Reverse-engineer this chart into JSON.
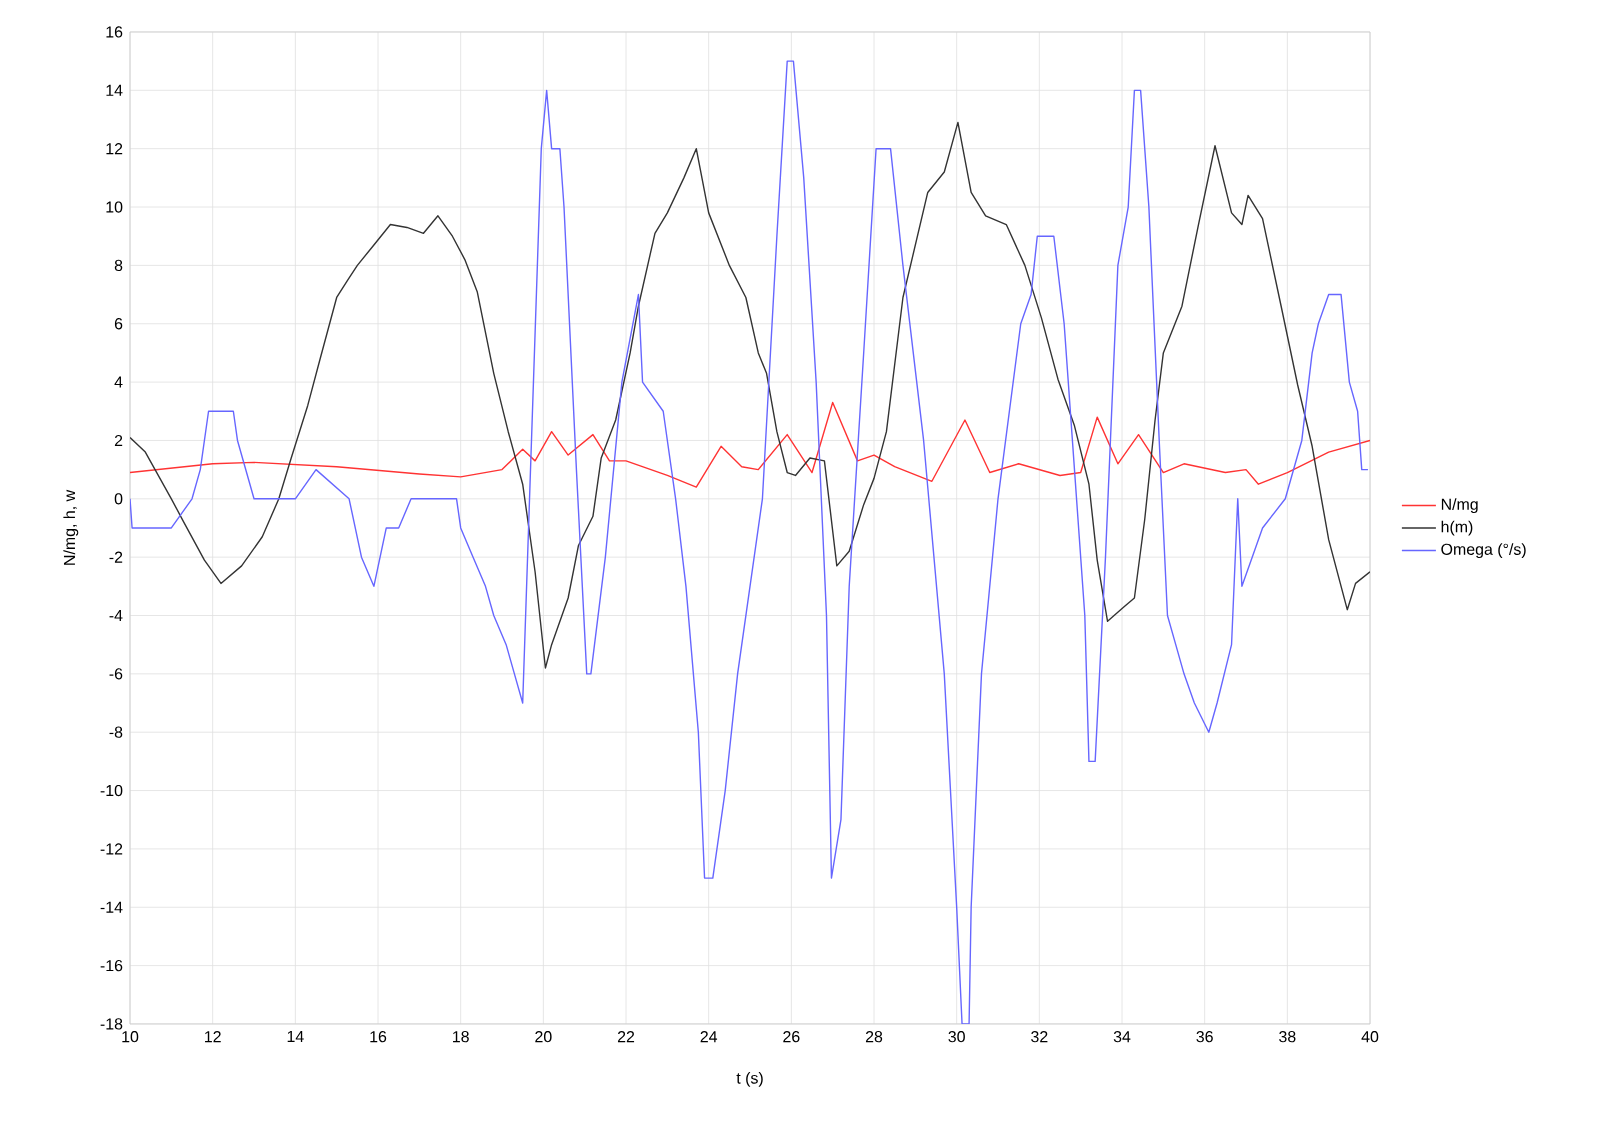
{
  "chart_data": {
    "type": "line",
    "xlabel": "t (s)",
    "ylabel": "N/mg, h, w",
    "xlim": [
      10,
      40
    ],
    "xticks": [
      10,
      12,
      14,
      16,
      18,
      20,
      22,
      24,
      26,
      28,
      30,
      32,
      34,
      36,
      38,
      40
    ],
    "ylim": [
      -18,
      16
    ],
    "yticks": [
      -18,
      -16,
      -14,
      -12,
      -10,
      -8,
      -6,
      -4,
      -2,
      0,
      2,
      4,
      6,
      8,
      10,
      12,
      14,
      16
    ],
    "grid": true,
    "legend": "right",
    "series": [
      {
        "name": "N/mg",
        "color": "#ff3333",
        "x": [
          10,
          12,
          13,
          15,
          17,
          18,
          19,
          19.5,
          19.8,
          20.2,
          20.6,
          21.2,
          21.6,
          22,
          23,
          23.7,
          24.3,
          24.8,
          25.2,
          25.9,
          26.5,
          27,
          27.6,
          28,
          28.5,
          29.4,
          30.2,
          30.8,
          31.5,
          32.5,
          33,
          33.4,
          33.9,
          34.4,
          35,
          35.5,
          36.5,
          37,
          37.3,
          38,
          39,
          40
        ],
        "values": [
          0.9,
          1.2,
          1.25,
          1.1,
          0.85,
          0.75,
          1.0,
          1.7,
          1.3,
          2.3,
          1.5,
          2.2,
          1.3,
          1.3,
          0.8,
          0.4,
          1.8,
          1.1,
          1.0,
          2.2,
          0.9,
          3.3,
          1.3,
          1.5,
          1.1,
          0.6,
          2.7,
          0.9,
          1.2,
          0.8,
          0.9,
          2.8,
          1.2,
          2.2,
          0.9,
          1.2,
          0.9,
          1.0,
          0.5,
          0.9,
          1.6,
          2.0
        ]
      },
      {
        "name": "h(m)",
        "color": "#333333",
        "x": [
          10,
          10.37,
          11,
          11.3,
          11.8,
          12.2,
          12.7,
          13.2,
          13.6,
          13.9,
          14.3,
          14.6,
          15.0,
          15.27,
          15.5,
          15.9,
          16.3,
          16.7,
          17.1,
          17.45,
          17.8,
          18.1,
          18.4,
          18.8,
          19.15,
          19.5,
          19.8,
          20.05,
          20.2,
          20.6,
          20.85,
          21.2,
          21.4,
          21.75,
          22.1,
          22.3,
          22.7,
          23.0,
          23.4,
          23.7,
          24.0,
          24.5,
          24.9,
          25.2,
          25.4,
          25.65,
          25.9,
          26.1,
          26.45,
          26.8,
          27.1,
          27.4,
          27.75,
          28.0,
          28.3,
          28.7,
          29.3,
          29.7,
          30.03,
          30.35,
          30.7,
          31.2,
          31.65,
          32.05,
          32.45,
          32.85,
          33.2,
          33.4,
          33.65,
          34.05,
          34.3,
          34.55,
          34.8,
          35.0,
          35.45,
          35.85,
          36.25,
          36.65,
          36.9,
          37.05,
          37.4,
          37.85,
          38.25,
          38.6,
          39.0,
          39.45,
          39.65,
          40.0
        ],
        "values": [
          2.1,
          1.6,
          0,
          -0.8,
          -2.1,
          -2.9,
          -2.3,
          -1.3,
          0,
          1.4,
          3.2,
          4.8,
          6.9,
          7.5,
          8.0,
          8.7,
          9.4,
          9.3,
          9.1,
          9.7,
          9.0,
          8.2,
          7.1,
          4.3,
          2.3,
          0.5,
          -2.5,
          -5.8,
          -5.0,
          -3.4,
          -1.6,
          -0.6,
          1.4,
          2.7,
          5.0,
          6.6,
          9.1,
          9.8,
          11.0,
          12.0,
          9.8,
          8.0,
          6.9,
          5.0,
          4.3,
          2.3,
          0.9,
          0.8,
          1.4,
          1.3,
          -2.3,
          -1.8,
          -0.2,
          0.7,
          2.3,
          6.9,
          10.5,
          11.2,
          12.9,
          10.5,
          9.7,
          9.4,
          8.0,
          6.2,
          4.1,
          2.5,
          0.5,
          -2.1,
          -4.2,
          -3.7,
          -3.4,
          -0.7,
          2.7,
          5.0,
          6.6,
          9.4,
          12.1,
          9.8,
          9.4,
          10.4,
          9.6,
          6.6,
          3.9,
          1.8,
          -1.4,
          -3.8,
          -2.9,
          -2.5
        ]
      },
      {
        "name": "Omega (°/s)",
        "color": "#6666ff",
        "x": [
          10,
          10.05,
          11.0,
          11.5,
          11.7,
          11.9,
          12.5,
          12.6,
          12.8,
          13.0,
          14.0,
          14.5,
          15.3,
          15.6,
          15.9,
          16.2,
          16.5,
          16.8,
          17.9,
          18.0,
          18.3,
          18.6,
          18.8,
          19.1,
          19.3,
          19.5,
          19.95,
          20.08,
          20.2,
          20.4,
          20.5,
          20.8,
          21.05,
          21.15,
          21.5,
          21.9,
          22.3,
          22.4,
          22.9,
          23.2,
          23.45,
          23.75,
          23.9,
          24.1,
          24.4,
          24.7,
          25.3,
          25.65,
          25.9,
          26.05,
          26.3,
          26.6,
          26.85,
          26.97,
          27.2,
          27.4,
          27.75,
          28.05,
          28.15,
          28.4,
          28.7,
          29.2,
          29.7,
          30.0,
          30.13,
          30.3,
          30.35,
          30.6,
          31.0,
          31.55,
          31.8,
          31.95,
          32.35,
          32.6,
          32.85,
          33.1,
          33.2,
          33.35,
          33.6,
          33.9,
          34.15,
          34.3,
          34.45,
          34.65,
          34.9,
          35.1,
          35.3,
          35.5,
          35.75,
          36.1,
          36.3,
          36.65,
          36.8,
          36.9,
          37.15,
          37.4,
          37.95,
          38.35,
          38.6,
          38.75,
          39.0,
          39.3,
          39.5,
          39.7,
          39.8,
          39.95
        ],
        "values": [
          0,
          -1,
          -1,
          0,
          1,
          3,
          3,
          2,
          1,
          0,
          0,
          1,
          0,
          -2,
          -3,
          -1,
          -1,
          0,
          0,
          -1,
          -2,
          -3,
          -4,
          -5,
          -6,
          -7,
          12,
          14,
          12,
          12,
          10,
          1,
          -6,
          -6,
          -2,
          4,
          7,
          4,
          3,
          0,
          -3,
          -8,
          -13,
          -13,
          -10,
          -6,
          0,
          9,
          15,
          15,
          11,
          4,
          -4,
          -13,
          -11,
          -3,
          5,
          12,
          12,
          12,
          8,
          2,
          -6,
          -14,
          -18,
          -18,
          -14,
          -6,
          0,
          6,
          7,
          9,
          9,
          6,
          1,
          -4,
          -9,
          -9,
          -2,
          8,
          10,
          14,
          14,
          10,
          2,
          -4,
          -5,
          -6,
          -7,
          -8,
          -7,
          -5,
          0,
          -3,
          -2,
          -1,
          0,
          2,
          5,
          6,
          7,
          7,
          4,
          3,
          1,
          1
        ]
      }
    ]
  }
}
